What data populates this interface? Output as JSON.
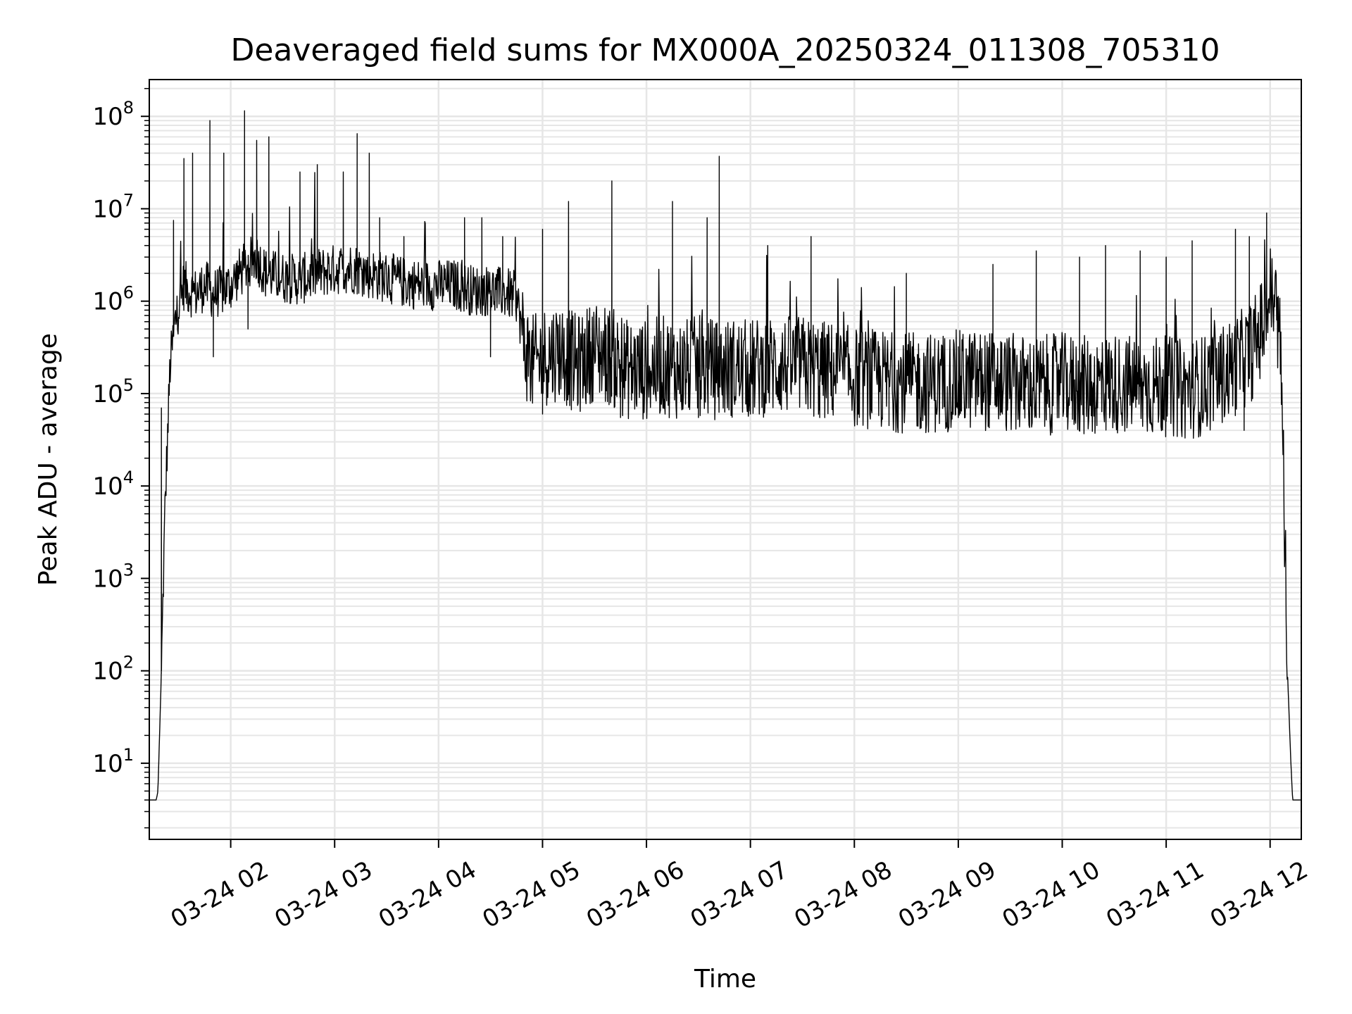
{
  "chart_data": {
    "type": "line",
    "title": "Deaveraged field sums for MX000A_20250324_011308_705310",
    "xlabel": "Time",
    "ylabel": "Peak ADU - average",
    "yscale": "log",
    "ylim": [
      1.5,
      250000000
    ],
    "xlim": [
      "2025-03-24 01:13",
      "2025-03-24 12:18"
    ],
    "grid": {
      "major": true,
      "minor_y": true,
      "color": "#e6e6e6"
    },
    "line_color": "#000000",
    "x_ticks": [
      {
        "label": "03-24 02",
        "time": "2025-03-24 02:00"
      },
      {
        "label": "03-24 03",
        "time": "2025-03-24 03:00"
      },
      {
        "label": "03-24 04",
        "time": "2025-03-24 04:00"
      },
      {
        "label": "03-24 05",
        "time": "2025-03-24 05:00"
      },
      {
        "label": "03-24 06",
        "time": "2025-03-24 06:00"
      },
      {
        "label": "03-24 07",
        "time": "2025-03-24 07:00"
      },
      {
        "label": "03-24 08",
        "time": "2025-03-24 08:00"
      },
      {
        "label": "03-24 09",
        "time": "2025-03-24 09:00"
      },
      {
        "label": "03-24 10",
        "time": "2025-03-24 10:00"
      },
      {
        "label": "03-24 11",
        "time": "2025-03-24 11:00"
      },
      {
        "label": "03-24 12",
        "time": "2025-03-24 12:00"
      }
    ],
    "y_ticks": [
      {
        "base": "10",
        "exp": "1",
        "value": 10
      },
      {
        "base": "10",
        "exp": "2",
        "value": 100
      },
      {
        "base": "10",
        "exp": "3",
        "value": 1000
      },
      {
        "base": "10",
        "exp": "4",
        "value": 10000
      },
      {
        "base": "10",
        "exp": "5",
        "value": 100000
      },
      {
        "base": "10",
        "exp": "6",
        "value": 1000000
      },
      {
        "base": "10",
        "exp": "7",
        "value": 10000000
      },
      {
        "base": "10",
        "exp": "8",
        "value": 100000000
      }
    ],
    "series": [
      {
        "x": [
          "2025-03-24 01:13",
          "2025-03-24 01:17",
          "2025-03-24 01:18",
          "2025-03-24 01:20",
          "2025-03-24 01:22",
          "2025-03-24 01:25",
          "2025-03-24 01:28",
          "2025-03-24 01:30",
          "2025-03-24 01:33",
          "2025-03-24 01:36",
          "2025-03-24 01:40",
          "2025-03-24 01:45",
          "2025-03-24 01:50",
          "2025-03-24 01:55",
          "2025-03-24 02:00",
          "2025-03-24 02:05",
          "2025-03-24 02:10",
          "2025-03-24 02:15",
          "2025-03-24 02:20",
          "2025-03-24 02:30",
          "2025-03-24 02:40",
          "2025-03-24 02:50",
          "2025-03-24 03:00",
          "2025-03-24 03:10",
          "2025-03-24 03:20",
          "2025-03-24 03:30",
          "2025-03-24 03:40",
          "2025-03-24 03:50",
          "2025-03-24 04:00",
          "2025-03-24 04:10",
          "2025-03-24 04:20",
          "2025-03-24 04:30",
          "2025-03-24 04:40",
          "2025-03-24 04:45",
          "2025-03-24 04:50",
          "2025-03-24 04:55",
          "2025-03-24 05:00",
          "2025-03-24 05:10",
          "2025-03-24 05:20",
          "2025-03-24 05:30",
          "2025-03-24 05:40",
          "2025-03-24 05:45",
          "2025-03-24 05:50",
          "2025-03-24 06:00",
          "2025-03-24 06:10",
          "2025-03-24 06:20",
          "2025-03-24 06:30",
          "2025-03-24 06:40",
          "2025-03-24 06:50",
          "2025-03-24 07:00",
          "2025-03-24 07:10",
          "2025-03-24 07:20",
          "2025-03-24 07:30",
          "2025-03-24 07:40",
          "2025-03-24 07:50",
          "2025-03-24 08:00",
          "2025-03-24 08:15",
          "2025-03-24 08:30",
          "2025-03-24 08:45",
          "2025-03-24 09:00",
          "2025-03-24 09:15",
          "2025-03-24 09:30",
          "2025-03-24 09:45",
          "2025-03-24 10:00",
          "2025-03-24 10:15",
          "2025-03-24 10:30",
          "2025-03-24 10:45",
          "2025-03-24 11:00",
          "2025-03-24 11:10",
          "2025-03-24 11:20",
          "2025-03-24 11:30",
          "2025-03-24 11:40",
          "2025-03-24 11:50",
          "2025-03-24 11:55",
          "2025-03-24 12:00",
          "2025-03-24 12:03",
          "2025-03-24 12:06",
          "2025-03-24 12:08",
          "2025-03-24 12:10",
          "2025-03-24 12:12",
          "2025-03-24 12:13",
          "2025-03-24 12:14",
          "2025-03-24 12:18"
        ],
        "y": [
          4,
          4,
          5,
          100,
          5000,
          200000,
          600000,
          900000,
          1500000,
          1300000,
          1200000,
          1500000,
          1200000,
          1300000,
          1500000,
          2000000,
          2500000,
          3000000,
          2000000,
          1800000,
          1700000,
          2000000,
          2200000,
          2300000,
          2000000,
          1800000,
          1600000,
          1500000,
          1500000,
          1500000,
          1300000,
          1300000,
          1200000,
          1100000,
          300000,
          200000,
          250000,
          300000,
          200000,
          300000,
          250000,
          200000,
          180000,
          180000,
          200000,
          180000,
          200000,
          180000,
          190000,
          180000,
          200000,
          200000,
          200000,
          180000,
          170000,
          150000,
          140000,
          130000,
          130000,
          140000,
          140000,
          130000,
          120000,
          130000,
          120000,
          130000,
          120000,
          120000,
          110000,
          120000,
          150000,
          200000,
          300000,
          500000,
          1200000,
          1000000,
          300000,
          10000,
          100,
          10,
          4,
          4,
          4
        ],
        "spikes": [
          {
            "x": "2025-03-24 01:27",
            "y": 7500000
          },
          {
            "x": "2025-03-24 01:33",
            "y": 35000000
          },
          {
            "x": "2025-03-24 01:38",
            "y": 40000000
          },
          {
            "x": "2025-03-24 01:48",
            "y": 90000000
          },
          {
            "x": "2025-03-24 01:56",
            "y": 40000000
          },
          {
            "x": "2025-03-24 02:08",
            "y": 115000000
          },
          {
            "x": "2025-03-24 02:15",
            "y": 55000000
          },
          {
            "x": "2025-03-24 02:22",
            "y": 60000000
          },
          {
            "x": "2025-03-24 02:40",
            "y": 25000000
          },
          {
            "x": "2025-03-24 02:50",
            "y": 30000000
          },
          {
            "x": "2025-03-24 03:05",
            "y": 25000000
          },
          {
            "x": "2025-03-24 03:13",
            "y": 65000000
          },
          {
            "x": "2025-03-24 03:20",
            "y": 40000000
          },
          {
            "x": "2025-03-24 03:26",
            "y": 8000000
          },
          {
            "x": "2025-03-24 03:40",
            "y": 5000000
          },
          {
            "x": "2025-03-24 04:15",
            "y": 8000000
          },
          {
            "x": "2025-03-24 04:25",
            "y": 8000000
          },
          {
            "x": "2025-03-24 04:37",
            "y": 5000000
          },
          {
            "x": "2025-03-24 05:00",
            "y": 6000000
          },
          {
            "x": "2025-03-24 05:15",
            "y": 12000000
          },
          {
            "x": "2025-03-24 05:40",
            "y": 20000000
          },
          {
            "x": "2025-03-24 06:15",
            "y": 12000000
          },
          {
            "x": "2025-03-24 06:35",
            "y": 8000000
          },
          {
            "x": "2025-03-24 06:42",
            "y": 37000000
          },
          {
            "x": "2025-03-24 07:10",
            "y": 4000000
          },
          {
            "x": "2025-03-24 07:35",
            "y": 5000000
          },
          {
            "x": "2025-03-24 08:30",
            "y": 2000000
          },
          {
            "x": "2025-03-24 09:20",
            "y": 2500000
          },
          {
            "x": "2025-03-24 09:45",
            "y": 3500000
          },
          {
            "x": "2025-03-24 10:10",
            "y": 3000000
          },
          {
            "x": "2025-03-24 10:25",
            "y": 4000000
          },
          {
            "x": "2025-03-24 10:45",
            "y": 3500000
          },
          {
            "x": "2025-03-24 11:00",
            "y": 3000000
          },
          {
            "x": "2025-03-24 11:15",
            "y": 4500000
          },
          {
            "x": "2025-03-24 11:40",
            "y": 6000000
          },
          {
            "x": "2025-03-24 11:48",
            "y": 5000000
          },
          {
            "x": "2025-03-24 11:58",
            "y": 9000000
          }
        ],
        "dips": [
          {
            "x": "2025-03-24 01:20",
            "y": 70000
          },
          {
            "x": "2025-03-24 01:50",
            "y": 250000
          },
          {
            "x": "2025-03-24 02:10",
            "y": 500000
          },
          {
            "x": "2025-03-24 04:30",
            "y": 250000
          },
          {
            "x": "2025-03-24 05:00",
            "y": 60000
          },
          {
            "x": "2025-03-24 05:45",
            "y": 55000
          },
          {
            "x": "2025-03-24 06:30",
            "y": 55000
          },
          {
            "x": "2025-03-24 07:00",
            "y": 60000
          },
          {
            "x": "2025-03-24 07:40",
            "y": 55000
          },
          {
            "x": "2025-03-24 08:20",
            "y": 45000
          },
          {
            "x": "2025-03-24 09:00",
            "y": 55000
          },
          {
            "x": "2025-03-24 09:45",
            "y": 55000
          },
          {
            "x": "2025-03-24 10:20",
            "y": 45000
          },
          {
            "x": "2025-03-24 11:00",
            "y": 50000
          },
          {
            "x": "2025-03-24 11:45",
            "y": 40000
          }
        ]
      }
    ]
  }
}
